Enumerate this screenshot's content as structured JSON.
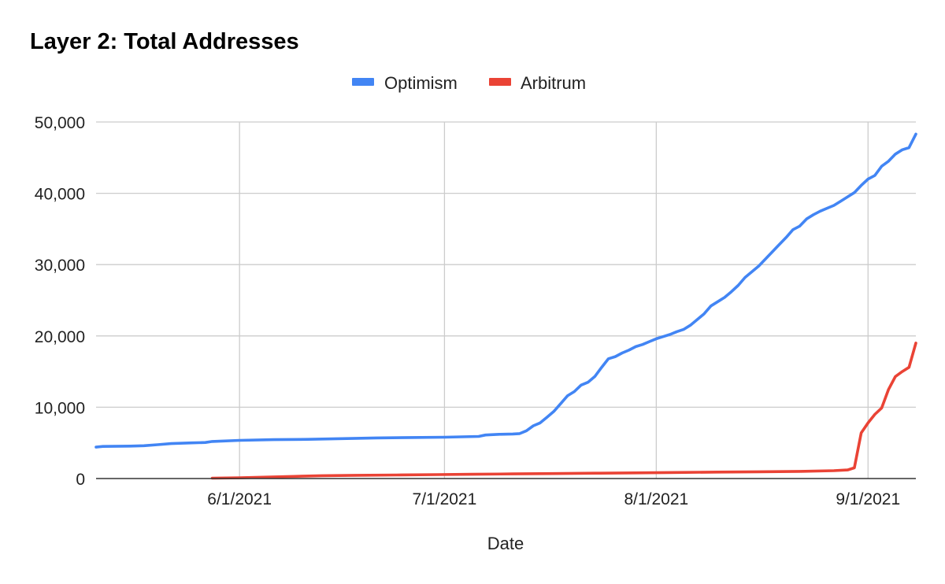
{
  "chart_data": {
    "type": "line",
    "title": "Layer 2: Total Addresses",
    "xlabel": "Date",
    "ylabel": "",
    "ylim": [
      0,
      50000
    ],
    "xlim": [
      "2021-05-11",
      "2021-09-08"
    ],
    "yticks": [
      {
        "value": 0,
        "label": "0"
      },
      {
        "value": 10000,
        "label": "10,000"
      },
      {
        "value": 20000,
        "label": "20,000"
      },
      {
        "value": 30000,
        "label": "30,000"
      },
      {
        "value": 40000,
        "label": "40,000"
      },
      {
        "value": 50000,
        "label": "50,000"
      }
    ],
    "xticks": [
      {
        "date": "2021-06-01",
        "label": "6/1/2021"
      },
      {
        "date": "2021-07-01",
        "label": "7/1/2021"
      },
      {
        "date": "2021-08-01",
        "label": "8/1/2021"
      },
      {
        "date": "2021-09-01",
        "label": "9/1/2021"
      }
    ],
    "grid": true,
    "legend_position": "top",
    "series": [
      {
        "name": "Optimism",
        "color": "#4285f4",
        "points": [
          [
            "2021-05-11",
            4400
          ],
          [
            "2021-05-12",
            4500
          ],
          [
            "2021-05-16",
            4550
          ],
          [
            "2021-05-18",
            4600
          ],
          [
            "2021-05-20",
            4750
          ],
          [
            "2021-05-22",
            4900
          ],
          [
            "2021-05-25",
            5000
          ],
          [
            "2021-05-27",
            5050
          ],
          [
            "2021-05-28",
            5200
          ],
          [
            "2021-06-01",
            5350
          ],
          [
            "2021-06-06",
            5450
          ],
          [
            "2021-06-11",
            5500
          ],
          [
            "2021-06-16",
            5600
          ],
          [
            "2021-06-21",
            5700
          ],
          [
            "2021-06-26",
            5750
          ],
          [
            "2021-07-01",
            5800
          ],
          [
            "2021-07-06",
            5900
          ],
          [
            "2021-07-07",
            6100
          ],
          [
            "2021-07-09",
            6200
          ],
          [
            "2021-07-11",
            6250
          ],
          [
            "2021-07-12",
            6300
          ],
          [
            "2021-07-13",
            6700
          ],
          [
            "2021-07-14",
            7400
          ],
          [
            "2021-07-15",
            7800
          ],
          [
            "2021-07-16",
            8600
          ],
          [
            "2021-07-17",
            9400
          ],
          [
            "2021-07-18",
            10500
          ],
          [
            "2021-07-19",
            11600
          ],
          [
            "2021-07-20",
            12200
          ],
          [
            "2021-07-21",
            13100
          ],
          [
            "2021-07-22",
            13500
          ],
          [
            "2021-07-23",
            14300
          ],
          [
            "2021-07-24",
            15600
          ],
          [
            "2021-07-25",
            16800
          ],
          [
            "2021-07-26",
            17100
          ],
          [
            "2021-07-27",
            17600
          ],
          [
            "2021-07-28",
            18000
          ],
          [
            "2021-07-29",
            18500
          ],
          [
            "2021-07-30",
            18800
          ],
          [
            "2021-07-31",
            19200
          ],
          [
            "2021-08-01",
            19600
          ],
          [
            "2021-08-02",
            19900
          ],
          [
            "2021-08-03",
            20200
          ],
          [
            "2021-08-04",
            20600
          ],
          [
            "2021-08-05",
            20900
          ],
          [
            "2021-08-06",
            21500
          ],
          [
            "2021-08-07",
            22300
          ],
          [
            "2021-08-08",
            23100
          ],
          [
            "2021-08-09",
            24200
          ],
          [
            "2021-08-10",
            24800
          ],
          [
            "2021-08-11",
            25400
          ],
          [
            "2021-08-12",
            26200
          ],
          [
            "2021-08-13",
            27100
          ],
          [
            "2021-08-14",
            28200
          ],
          [
            "2021-08-15",
            29000
          ],
          [
            "2021-08-16",
            29800
          ],
          [
            "2021-08-17",
            30800
          ],
          [
            "2021-08-18",
            31800
          ],
          [
            "2021-08-19",
            32800
          ],
          [
            "2021-08-20",
            33800
          ],
          [
            "2021-08-21",
            34900
          ],
          [
            "2021-08-22",
            35400
          ],
          [
            "2021-08-23",
            36400
          ],
          [
            "2021-08-24",
            37000
          ],
          [
            "2021-08-25",
            37500
          ],
          [
            "2021-08-26",
            37900
          ],
          [
            "2021-08-27",
            38300
          ],
          [
            "2021-08-28",
            38900
          ],
          [
            "2021-08-29",
            39500
          ],
          [
            "2021-08-30",
            40100
          ],
          [
            "2021-08-31",
            41100
          ],
          [
            "2021-09-01",
            42000
          ],
          [
            "2021-09-02",
            42500
          ],
          [
            "2021-09-03",
            43800
          ],
          [
            "2021-09-04",
            44500
          ],
          [
            "2021-09-05",
            45500
          ],
          [
            "2021-09-06",
            46100
          ],
          [
            "2021-09-07",
            46400
          ],
          [
            "2021-09-08",
            48300
          ]
        ]
      },
      {
        "name": "Arbitrum",
        "color": "#ea4335",
        "points": [
          [
            "2021-05-28",
            50
          ],
          [
            "2021-06-01",
            100
          ],
          [
            "2021-06-05",
            200
          ],
          [
            "2021-06-09",
            300
          ],
          [
            "2021-06-13",
            400
          ],
          [
            "2021-06-18",
            450
          ],
          [
            "2021-06-24",
            500
          ],
          [
            "2021-06-30",
            550
          ],
          [
            "2021-07-05",
            600
          ],
          [
            "2021-07-11",
            650
          ],
          [
            "2021-07-17",
            700
          ],
          [
            "2021-07-23",
            750
          ],
          [
            "2021-07-29",
            800
          ],
          [
            "2021-08-04",
            850
          ],
          [
            "2021-08-10",
            900
          ],
          [
            "2021-08-16",
            950
          ],
          [
            "2021-08-22",
            1000
          ],
          [
            "2021-08-27",
            1100
          ],
          [
            "2021-08-29",
            1200
          ],
          [
            "2021-08-30",
            1500
          ],
          [
            "2021-08-31",
            6400
          ],
          [
            "2021-09-01",
            7800
          ],
          [
            "2021-09-02",
            9000
          ],
          [
            "2021-09-03",
            9900
          ],
          [
            "2021-09-04",
            12500
          ],
          [
            "2021-09-05",
            14300
          ],
          [
            "2021-09-06",
            15000
          ],
          [
            "2021-09-07",
            15600
          ],
          [
            "2021-09-08",
            19000
          ]
        ]
      }
    ]
  }
}
